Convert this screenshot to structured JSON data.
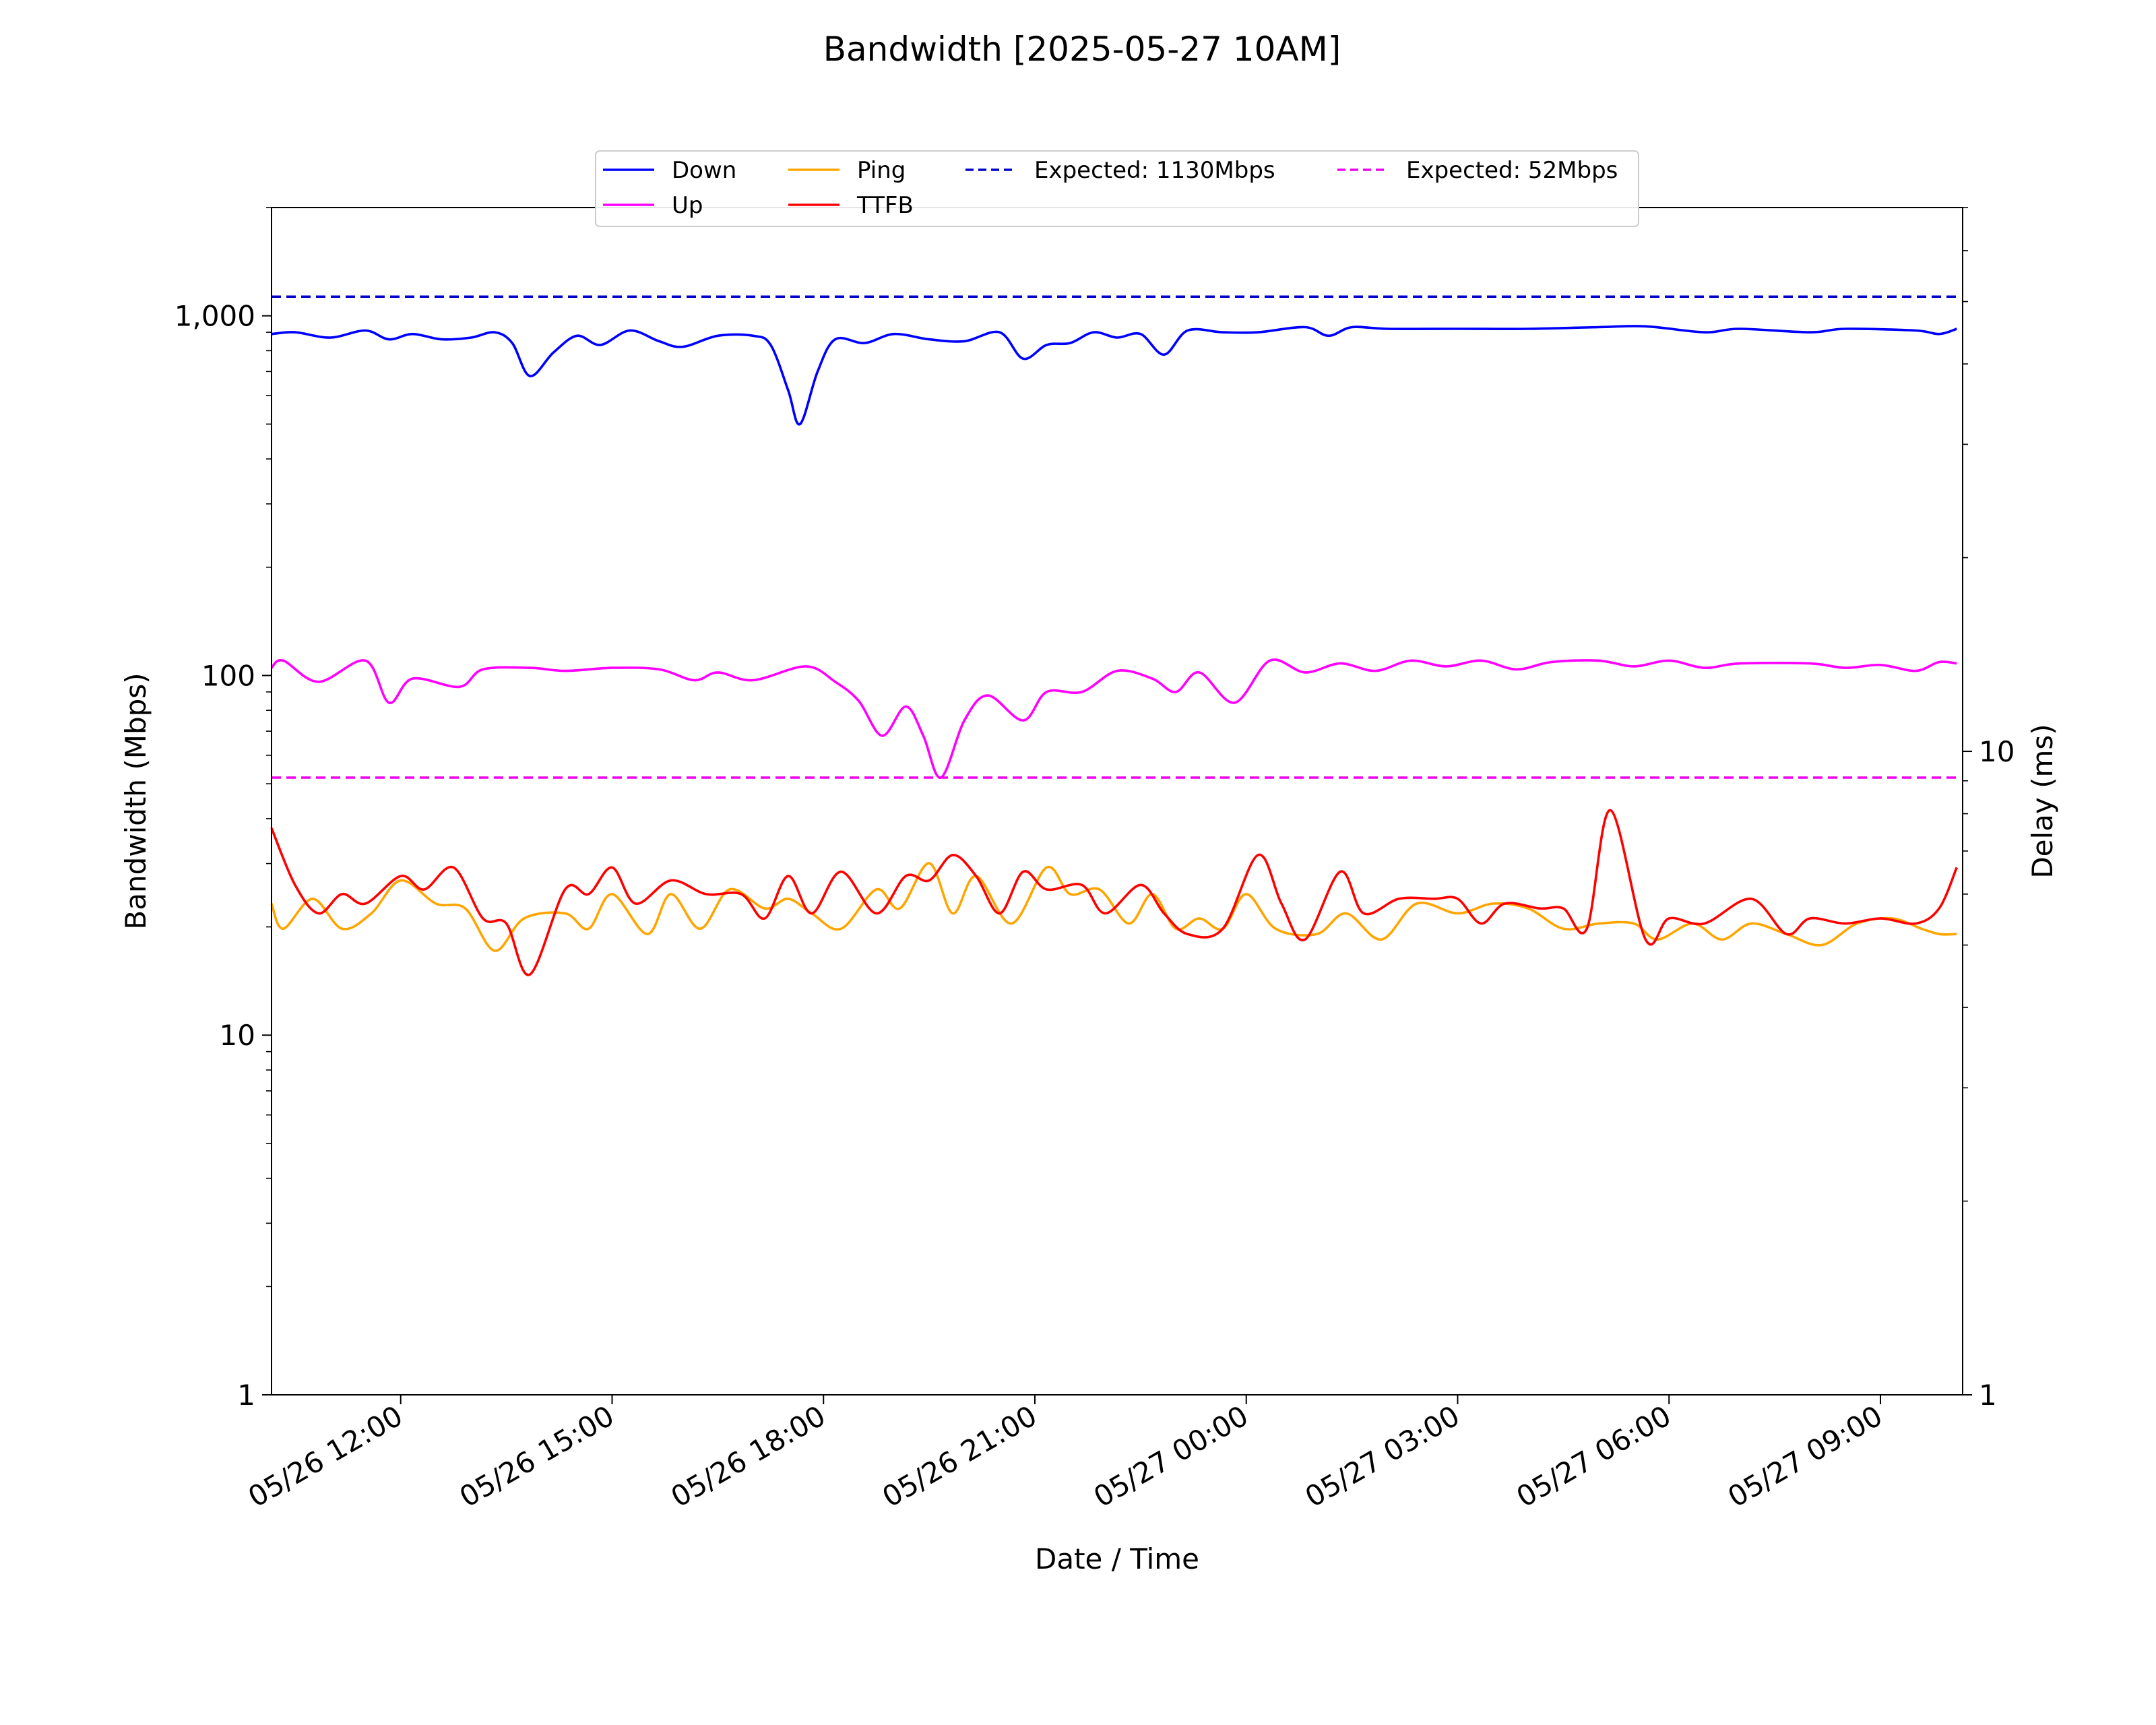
{
  "chart_data": {
    "type": "line",
    "title": "Bandwidth [2025-05-27 10AM]",
    "xlabel": "Date / Time",
    "ylabel": "Bandwidth (Mbps)",
    "y2label": "Delay (ms)",
    "yscale": "log",
    "y2scale": "log",
    "ylim": [
      1,
      2000
    ],
    "y2lim": [
      1,
      70
    ],
    "xlim": [
      "2025-05-26 10:10",
      "2025-05-27 10:10"
    ],
    "grid": false,
    "legend_position": "top-center",
    "yticks": [
      {
        "value": 1,
        "label": "1"
      },
      {
        "value": 10,
        "label": "10"
      },
      {
        "value": 100,
        "label": "100"
      },
      {
        "value": 1000,
        "label": "1,000"
      }
    ],
    "y2ticks": [
      {
        "value": 1,
        "label": "1"
      },
      {
        "value": 10,
        "label": "10"
      }
    ],
    "xticks": [
      {
        "value": "2025-05-26 12:00",
        "label": "05/26 12:00"
      },
      {
        "value": "2025-05-26 15:00",
        "label": "05/26 15:00"
      },
      {
        "value": "2025-05-26 18:00",
        "label": "05/26 18:00"
      },
      {
        "value": "2025-05-26 21:00",
        "label": "05/26 21:00"
      },
      {
        "value": "2025-05-27 00:00",
        "label": "05/27 00:00"
      },
      {
        "value": "2025-05-27 03:00",
        "label": "05/27 03:00"
      },
      {
        "value": "2025-05-27 06:00",
        "label": "05/27 06:00"
      },
      {
        "value": "2025-05-27 09:00",
        "label": "05/27 09:00"
      }
    ],
    "series": [
      {
        "name": "Down",
        "axis": "left",
        "color": "#0000ff",
        "style": "solid",
        "points": [
          [
            "2025-05-26 10:10",
            890
          ],
          [
            "2025-05-26 10:30",
            900
          ],
          [
            "2025-05-26 11:00",
            870
          ],
          [
            "2025-05-26 11:30",
            910
          ],
          [
            "2025-05-26 11:50",
            860
          ],
          [
            "2025-05-26 12:10",
            890
          ],
          [
            "2025-05-26 12:35",
            860
          ],
          [
            "2025-05-26 13:00",
            870
          ],
          [
            "2025-05-26 13:20",
            900
          ],
          [
            "2025-05-26 13:35",
            840
          ],
          [
            "2025-05-26 13:50",
            680
          ],
          [
            "2025-05-26 14:10",
            790
          ],
          [
            "2025-05-26 14:30",
            880
          ],
          [
            "2025-05-26 14:50",
            830
          ],
          [
            "2025-05-26 15:15",
            910
          ],
          [
            "2025-05-26 15:40",
            850
          ],
          [
            "2025-05-26 16:00",
            820
          ],
          [
            "2025-05-26 16:30",
            880
          ],
          [
            "2025-05-26 17:00",
            880
          ],
          [
            "2025-05-26 17:15",
            830
          ],
          [
            "2025-05-26 17:30",
            620
          ],
          [
            "2025-05-26 17:40",
            500
          ],
          [
            "2025-05-26 17:55",
            700
          ],
          [
            "2025-05-26 18:10",
            860
          ],
          [
            "2025-05-26 18:35",
            840
          ],
          [
            "2025-05-26 19:00",
            890
          ],
          [
            "2025-05-26 19:30",
            860
          ],
          [
            "2025-05-26 20:00",
            850
          ],
          [
            "2025-05-26 20:30",
            900
          ],
          [
            "2025-05-26 20:50",
            760
          ],
          [
            "2025-05-26 21:10",
            830
          ],
          [
            "2025-05-26 21:30",
            840
          ],
          [
            "2025-05-26 21:50",
            900
          ],
          [
            "2025-05-26 22:10",
            870
          ],
          [
            "2025-05-26 22:30",
            890
          ],
          [
            "2025-05-26 22:50",
            780
          ],
          [
            "2025-05-26 23:10",
            910
          ],
          [
            "2025-05-26 23:40",
            900
          ],
          [
            "2025-05-27 00:10",
            900
          ],
          [
            "2025-05-27 00:50",
            930
          ],
          [
            "2025-05-27 01:10",
            880
          ],
          [
            "2025-05-27 01:30",
            930
          ],
          [
            "2025-05-27 02:00",
            920
          ],
          [
            "2025-05-27 03:00",
            920
          ],
          [
            "2025-05-27 04:00",
            920
          ],
          [
            "2025-05-27 05:00",
            930
          ],
          [
            "2025-05-27 05:40",
            935
          ],
          [
            "2025-05-27 06:30",
            900
          ],
          [
            "2025-05-27 07:00",
            920
          ],
          [
            "2025-05-27 08:00",
            900
          ],
          [
            "2025-05-27 08:30",
            920
          ],
          [
            "2025-05-27 09:30",
            910
          ],
          [
            "2025-05-27 09:50",
            890
          ],
          [
            "2025-05-27 10:05",
            920
          ]
        ]
      },
      {
        "name": "Up",
        "axis": "left",
        "color": "#ff00ff",
        "style": "solid",
        "points": [
          [
            "2025-05-26 10:10",
            105
          ],
          [
            "2025-05-26 10:20",
            110
          ],
          [
            "2025-05-26 10:50",
            96
          ],
          [
            "2025-05-26 11:30",
            110
          ],
          [
            "2025-05-26 11:50",
            84
          ],
          [
            "2025-05-26 12:10",
            98
          ],
          [
            "2025-05-26 12:50",
            93
          ],
          [
            "2025-05-26 13:10",
            104
          ],
          [
            "2025-05-26 13:50",
            105
          ],
          [
            "2025-05-26 14:20",
            103
          ],
          [
            "2025-05-26 15:00",
            105
          ],
          [
            "2025-05-26 15:40",
            104
          ],
          [
            "2025-05-26 16:10",
            97
          ],
          [
            "2025-05-26 16:30",
            102
          ],
          [
            "2025-05-26 17:00",
            97
          ],
          [
            "2025-05-26 17:45",
            106
          ],
          [
            "2025-05-26 18:10",
            96
          ],
          [
            "2025-05-26 18:30",
            85
          ],
          [
            "2025-05-26 18:50",
            68
          ],
          [
            "2025-05-26 19:10",
            82
          ],
          [
            "2025-05-26 19:25",
            68
          ],
          [
            "2025-05-26 19:40",
            52
          ],
          [
            "2025-05-26 20:00",
            75
          ],
          [
            "2025-05-26 20:20",
            88
          ],
          [
            "2025-05-26 20:50",
            75
          ],
          [
            "2025-05-26 21:10",
            90
          ],
          [
            "2025-05-26 21:40",
            90
          ],
          [
            "2025-05-26 22:10",
            103
          ],
          [
            "2025-05-26 22:40",
            98
          ],
          [
            "2025-05-26 23:00",
            90
          ],
          [
            "2025-05-26 23:20",
            102
          ],
          [
            "2025-05-26 23:50",
            84
          ],
          [
            "2025-05-27 00:20",
            110
          ],
          [
            "2025-05-27 00:50",
            102
          ],
          [
            "2025-05-27 01:20",
            108
          ],
          [
            "2025-05-27 01:50",
            103
          ],
          [
            "2025-05-27 02:20",
            110
          ],
          [
            "2025-05-27 02:50",
            106
          ],
          [
            "2025-05-27 03:20",
            110
          ],
          [
            "2025-05-27 03:50",
            104
          ],
          [
            "2025-05-27 04:20",
            109
          ],
          [
            "2025-05-27 05:00",
            110
          ],
          [
            "2025-05-27 05:30",
            106
          ],
          [
            "2025-05-27 06:00",
            110
          ],
          [
            "2025-05-27 06:30",
            105
          ],
          [
            "2025-05-27 07:00",
            108
          ],
          [
            "2025-05-27 08:00",
            108
          ],
          [
            "2025-05-27 08:30",
            105
          ],
          [
            "2025-05-27 09:00",
            107
          ],
          [
            "2025-05-27 09:30",
            103
          ],
          [
            "2025-05-27 09:50",
            109
          ],
          [
            "2025-05-27 10:05",
            108
          ]
        ]
      },
      {
        "name": "Ping",
        "axis": "right",
        "color": "#ffa500",
        "style": "solid",
        "points": [
          [
            "2025-05-26 10:10",
            5.8
          ],
          [
            "2025-05-26 10:20",
            5.3
          ],
          [
            "2025-05-26 10:45",
            5.9
          ],
          [
            "2025-05-26 11:10",
            5.3
          ],
          [
            "2025-05-26 11:35",
            5.6
          ],
          [
            "2025-05-26 12:00",
            6.3
          ],
          [
            "2025-05-26 12:30",
            5.8
          ],
          [
            "2025-05-26 12:55",
            5.7
          ],
          [
            "2025-05-26 13:20",
            4.9
          ],
          [
            "2025-05-26 13:45",
            5.5
          ],
          [
            "2025-05-26 14:20",
            5.6
          ],
          [
            "2025-05-26 14:40",
            5.3
          ],
          [
            "2025-05-26 15:00",
            6.0
          ],
          [
            "2025-05-26 15:30",
            5.2
          ],
          [
            "2025-05-26 15:50",
            6.0
          ],
          [
            "2025-05-26 16:15",
            5.3
          ],
          [
            "2025-05-26 16:40",
            6.1
          ],
          [
            "2025-05-26 17:10",
            5.7
          ],
          [
            "2025-05-26 17:30",
            5.9
          ],
          [
            "2025-05-26 17:50",
            5.6
          ],
          [
            "2025-05-26 18:15",
            5.3
          ],
          [
            "2025-05-26 18:45",
            6.1
          ],
          [
            "2025-05-26 19:05",
            5.7
          ],
          [
            "2025-05-26 19:30",
            6.7
          ],
          [
            "2025-05-26 19:50",
            5.6
          ],
          [
            "2025-05-26 20:10",
            6.4
          ],
          [
            "2025-05-26 20:40",
            5.4
          ],
          [
            "2025-05-26 21:10",
            6.6
          ],
          [
            "2025-05-26 21:30",
            6.0
          ],
          [
            "2025-05-26 21:55",
            6.1
          ],
          [
            "2025-05-26 22:20",
            5.4
          ],
          [
            "2025-05-26 22:40",
            6.0
          ],
          [
            "2025-05-26 23:00",
            5.3
          ],
          [
            "2025-05-26 23:20",
            5.5
          ],
          [
            "2025-05-26 23:40",
            5.3
          ],
          [
            "2025-05-27 00:00",
            6.0
          ],
          [
            "2025-05-27 00:25",
            5.3
          ],
          [
            "2025-05-27 01:00",
            5.2
          ],
          [
            "2025-05-27 01:25",
            5.6
          ],
          [
            "2025-05-27 01:55",
            5.1
          ],
          [
            "2025-05-27 02:25",
            5.8
          ],
          [
            "2025-05-27 03:00",
            5.6
          ],
          [
            "2025-05-27 03:30",
            5.8
          ],
          [
            "2025-05-27 04:00",
            5.7
          ],
          [
            "2025-05-27 04:30",
            5.3
          ],
          [
            "2025-05-27 05:00",
            5.4
          ],
          [
            "2025-05-27 05:30",
            5.4
          ],
          [
            "2025-05-27 05:50",
            5.1
          ],
          [
            "2025-05-27 06:20",
            5.4
          ],
          [
            "2025-05-27 06:45",
            5.1
          ],
          [
            "2025-05-27 07:10",
            5.4
          ],
          [
            "2025-05-27 07:40",
            5.2
          ],
          [
            "2025-05-27 08:10",
            5.0
          ],
          [
            "2025-05-27 08:40",
            5.4
          ],
          [
            "2025-05-27 09:10",
            5.5
          ],
          [
            "2025-05-27 09:35",
            5.3
          ],
          [
            "2025-05-27 09:50",
            5.2
          ],
          [
            "2025-05-27 10:05",
            5.2
          ]
        ]
      },
      {
        "name": "TTFB",
        "axis": "right",
        "color": "#ff0000",
        "style": "solid",
        "points": [
          [
            "2025-05-26 10:10",
            7.6
          ],
          [
            "2025-05-26 10:30",
            6.2
          ],
          [
            "2025-05-26 10:50",
            5.6
          ],
          [
            "2025-05-26 11:10",
            6.0
          ],
          [
            "2025-05-26 11:30",
            5.8
          ],
          [
            "2025-05-26 12:00",
            6.4
          ],
          [
            "2025-05-26 12:20",
            6.1
          ],
          [
            "2025-05-26 12:45",
            6.6
          ],
          [
            "2025-05-26 13:10",
            5.5
          ],
          [
            "2025-05-26 13:30",
            5.4
          ],
          [
            "2025-05-26 13:50",
            4.5
          ],
          [
            "2025-05-26 14:20",
            6.1
          ],
          [
            "2025-05-26 14:40",
            6.0
          ],
          [
            "2025-05-26 15:00",
            6.6
          ],
          [
            "2025-05-26 15:20",
            5.8
          ],
          [
            "2025-05-26 15:50",
            6.3
          ],
          [
            "2025-05-26 16:20",
            6.0
          ],
          [
            "2025-05-26 16:50",
            6.0
          ],
          [
            "2025-05-26 17:10",
            5.5
          ],
          [
            "2025-05-26 17:30",
            6.4
          ],
          [
            "2025-05-26 17:50",
            5.6
          ],
          [
            "2025-05-26 18:15",
            6.5
          ],
          [
            "2025-05-26 18:45",
            5.6
          ],
          [
            "2025-05-26 19:10",
            6.4
          ],
          [
            "2025-05-26 19:30",
            6.3
          ],
          [
            "2025-05-26 19:50",
            6.9
          ],
          [
            "2025-05-26 20:10",
            6.4
          ],
          [
            "2025-05-26 20:30",
            5.6
          ],
          [
            "2025-05-26 20:50",
            6.5
          ],
          [
            "2025-05-26 21:10",
            6.1
          ],
          [
            "2025-05-26 21:40",
            6.2
          ],
          [
            "2025-05-26 22:00",
            5.6
          ],
          [
            "2025-05-26 22:30",
            6.2
          ],
          [
            "2025-05-26 22:50",
            5.6
          ],
          [
            "2025-05-26 23:10",
            5.2
          ],
          [
            "2025-05-26 23:40",
            5.3
          ],
          [
            "2025-05-27 00:10",
            6.9
          ],
          [
            "2025-05-27 00:30",
            5.8
          ],
          [
            "2025-05-27 00:50",
            5.1
          ],
          [
            "2025-05-27 01:20",
            6.5
          ],
          [
            "2025-05-27 01:40",
            5.6
          ],
          [
            "2025-05-27 02:10",
            5.9
          ],
          [
            "2025-05-27 02:40",
            5.9
          ],
          [
            "2025-05-27 03:00",
            5.9
          ],
          [
            "2025-05-27 03:20",
            5.4
          ],
          [
            "2025-05-27 03:40",
            5.8
          ],
          [
            "2025-05-27 04:10",
            5.7
          ],
          [
            "2025-05-27 04:30",
            5.7
          ],
          [
            "2025-05-27 04:50",
            5.3
          ],
          [
            "2025-05-27 05:10",
            8.1
          ],
          [
            "2025-05-27 05:40",
            5.1
          ],
          [
            "2025-05-27 06:00",
            5.5
          ],
          [
            "2025-05-27 06:30",
            5.4
          ],
          [
            "2025-05-27 07:10",
            5.9
          ],
          [
            "2025-05-27 07:40",
            5.2
          ],
          [
            "2025-05-27 08:00",
            5.5
          ],
          [
            "2025-05-27 08:30",
            5.4
          ],
          [
            "2025-05-27 09:00",
            5.5
          ],
          [
            "2025-05-27 09:30",
            5.4
          ],
          [
            "2025-05-27 09:50",
            5.7
          ],
          [
            "2025-05-27 10:05",
            6.6
          ]
        ]
      },
      {
        "name": "Expected: 1130Mbps",
        "axis": "left",
        "color": "#0000cc",
        "style": "dashed",
        "points": [
          [
            "2025-05-26 10:10",
            1130
          ],
          [
            "2025-05-27 10:05",
            1130
          ]
        ]
      },
      {
        "name": "Expected: 52Mbps",
        "axis": "left",
        "color": "#ee00ee",
        "style": "dashed",
        "points": [
          [
            "2025-05-26 10:10",
            52
          ],
          [
            "2025-05-27 10:05",
            52
          ]
        ]
      }
    ]
  }
}
